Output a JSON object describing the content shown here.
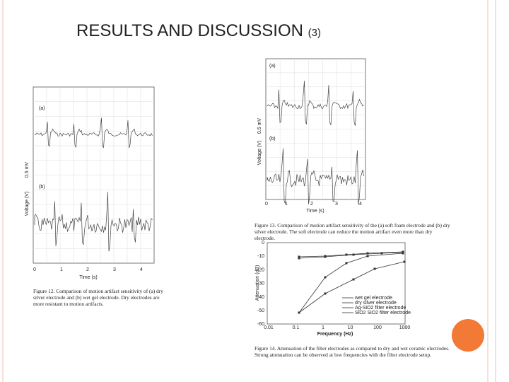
{
  "title": "RESULTS AND DISCUSSION",
  "title_suffix": "(3)",
  "figures": [
    {
      "panel_labels": [
        "(a)",
        "(b)"
      ],
      "scale_label": "0.5 mV",
      "y_label": "Voltage (V)",
      "x_label": "Time (s)",
      "x_ticks": [
        "0",
        "1",
        "2",
        "3",
        "4"
      ],
      "caption": "Figure 12. Comparison of motion artifact sensitivity of (a) dry silver electrode and (b) wet gel electrode. Dry electrodes are more resistant to motion artifacts."
    },
    {
      "panel_labels": [
        "(a)",
        "(b)"
      ],
      "scale_label": "0.5 mV",
      "y_label": "Voltage (V)",
      "x_label": "Time (s)",
      "x_ticks": [
        "0",
        "1",
        "2",
        "3",
        "4"
      ],
      "caption": "Figure 13. Comparison of motion artifact sensitivity of the (a) soft foam electrode and (b) dry silver electrode. The soft electrode can reduce the motion artifact even more than dry electrode."
    },
    {
      "y_label": "Attenuation (dB)",
      "x_label": "Frequency (Hz)",
      "y_ticks": [
        "0",
        "-10",
        "-20",
        "-30",
        "-40",
        "-50",
        "-60"
      ],
      "x_ticks": [
        "0.01",
        "0.1",
        "1",
        "10",
        "100",
        "1000"
      ],
      "legend": [
        "wet gel electrode",
        "dry silver electrode",
        "Ag-SiO2 filter electrode",
        "SiO2 SiO2 filter electrode"
      ],
      "caption": "Figure 14. Attenuation of the filter electrodes as compared to dry and wet ceramic electrodes. Strong attenuation can be observed at low frequencies with the filter electrode setup."
    }
  ]
}
